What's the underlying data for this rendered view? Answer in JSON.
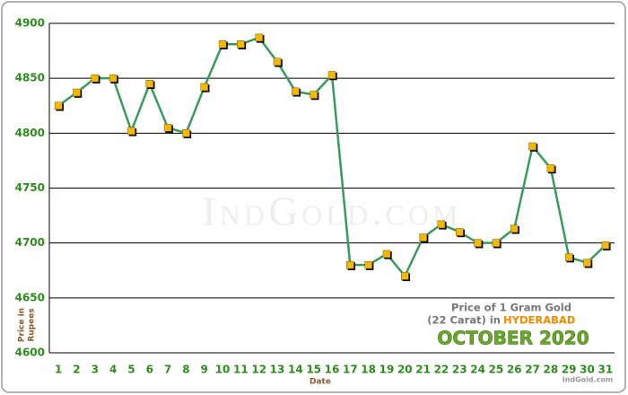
{
  "chart_data": {
    "type": "line",
    "categories": [
      "1",
      "2",
      "3",
      "4",
      "5",
      "6",
      "7",
      "8",
      "9",
      "10",
      "11",
      "12",
      "13",
      "14",
      "15",
      "16",
      "17",
      "18",
      "19",
      "20",
      "21",
      "22",
      "23",
      "24",
      "25",
      "26",
      "27",
      "28",
      "29",
      "30",
      "31"
    ],
    "values": [
      4825,
      4837,
      4850,
      4850,
      4802,
      4845,
      4805,
      4800,
      4842,
      4881,
      4881,
      4887,
      4865,
      4838,
      4835,
      4853,
      4680,
      4680,
      4690,
      4670,
      4705,
      4717,
      4710,
      4700,
      4700,
      4713,
      4788,
      4768,
      4687,
      4682,
      4698
    ],
    "color": "#3a9a5c",
    "marker_color": "#f5b800",
    "ylim": [
      4600,
      4900
    ],
    "yticks": [
      4600,
      4650,
      4700,
      4750,
      4800,
      4850,
      4900
    ],
    "grid": true,
    "xlabel": "Date",
    "ylabel_line1": "Price in",
    "ylabel_line2": "Rupees",
    "watermark": "IndGold.com",
    "annotation": {
      "line1": "Price of 1 Gram Gold",
      "line2": "(22 Carat) in",
      "city": "HYDERABAD",
      "month": "OCTOBER 2020",
      "source": "IndGold.com"
    }
  }
}
